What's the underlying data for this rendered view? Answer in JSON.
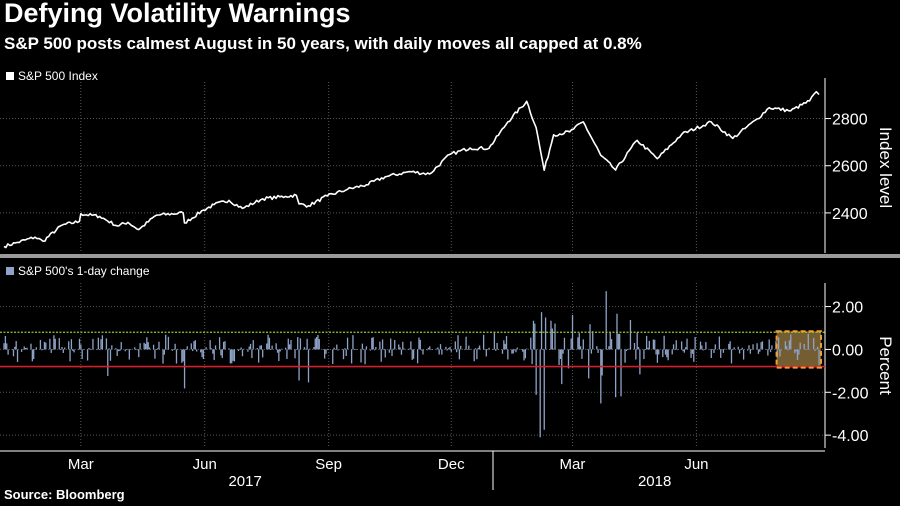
{
  "header": {
    "title": "Defying Volatility Warnings",
    "subtitle": "S&P 500 posts calmest August in 50 years, with daily moves all capped at 0.8%"
  },
  "footer": {
    "source": "Source: Bloomberg"
  },
  "colors": {
    "background": "#000000",
    "index_line": "#ffffff",
    "change_bars": "#8ea3c8",
    "upper_cap_line": "#9bc53d",
    "lower_cap_line": "#d0222a",
    "highlight_fill": "#8a6d3b",
    "highlight_border": "#f0a030",
    "grid": "#555555"
  },
  "chart_data": [
    {
      "type": "line",
      "legend": "S&P 500 Index",
      "legend_placement": "top-left",
      "ylabel": "Index level",
      "y_ticks": [
        2400,
        2600,
        2800
      ],
      "ylim": [
        2230,
        2955
      ],
      "x_start": "2017-01-03",
      "x_end": "2018-08-31",
      "grid": true,
      "series": [
        {
          "points": [
            [
              "2017-01-03",
              2258
            ],
            [
              "2017-01-13",
              2275
            ],
            [
              "2017-01-26",
              2297
            ],
            [
              "2017-02-01",
              2280
            ],
            [
              "2017-02-15",
              2348
            ],
            [
              "2017-02-28",
              2364
            ],
            [
              "2017-03-01",
              2396
            ],
            [
              "2017-03-15",
              2385
            ],
            [
              "2017-03-28",
              2345
            ],
            [
              "2017-04-05",
              2360
            ],
            [
              "2017-04-13",
              2329
            ],
            [
              "2017-04-26",
              2390
            ],
            [
              "2017-05-16",
              2400
            ],
            [
              "2017-05-17",
              2357
            ],
            [
              "2017-05-31",
              2412
            ],
            [
              "2017-06-08",
              2435
            ],
            [
              "2017-06-19",
              2453
            ],
            [
              "2017-06-29",
              2419
            ],
            [
              "2017-07-14",
              2460
            ],
            [
              "2017-07-31",
              2470
            ],
            [
              "2017-08-08",
              2475
            ],
            [
              "2017-08-10",
              2438
            ],
            [
              "2017-08-17",
              2430
            ],
            [
              "2017-08-31",
              2472
            ],
            [
              "2017-09-15",
              2500
            ],
            [
              "2017-09-29",
              2519
            ],
            [
              "2017-10-13",
              2553
            ],
            [
              "2017-10-31",
              2575
            ],
            [
              "2017-11-15",
              2565
            ],
            [
              "2017-11-30",
              2648
            ],
            [
              "2017-12-15",
              2675
            ],
            [
              "2017-12-29",
              2674
            ],
            [
              "2018-01-12",
              2786
            ],
            [
              "2018-01-26",
              2873
            ],
            [
              "2018-02-02",
              2762
            ],
            [
              "2018-02-08",
              2581
            ],
            [
              "2018-02-15",
              2731
            ],
            [
              "2018-02-27",
              2744
            ],
            [
              "2018-03-09",
              2786
            ],
            [
              "2018-03-22",
              2644
            ],
            [
              "2018-04-02",
              2582
            ],
            [
              "2018-04-18",
              2708
            ],
            [
              "2018-05-03",
              2630
            ],
            [
              "2018-05-21",
              2733
            ],
            [
              "2018-06-12",
              2786
            ],
            [
              "2018-06-28",
              2716
            ],
            [
              "2018-07-16",
              2798
            ],
            [
              "2018-07-25",
              2846
            ],
            [
              "2018-08-10",
              2833
            ],
            [
              "2018-08-24",
              2875
            ],
            [
              "2018-08-29",
              2914
            ],
            [
              "2018-08-31",
              2902
            ]
          ]
        }
      ]
    },
    {
      "type": "bar",
      "legend": "S&P 500's 1-day change",
      "legend_placement": "top-left",
      "ylabel": "Percent",
      "y_ticks": [
        -4.0,
        -2.0,
        0.0,
        2.0
      ],
      "y_tick_labels": [
        "-4.00",
        "-2.00",
        "0.00",
        "2.00"
      ],
      "ylim": [
        -4.6,
        3.1
      ],
      "reference_lines": [
        0.8,
        -0.8
      ],
      "highlight_range": [
        "2018-08-01",
        "2018-08-31"
      ],
      "x_start": "2017-01-03",
      "x_end": "2018-08-31",
      "grid": true,
      "notable_values": [
        [
          "2017-03-21",
          -1.24
        ],
        [
          "2017-05-17",
          -1.82
        ],
        [
          "2017-08-10",
          -1.45
        ],
        [
          "2017-08-17",
          -1.54
        ],
        [
          "2018-02-02",
          -2.12
        ],
        [
          "2018-02-05",
          -4.1
        ],
        [
          "2018-02-08",
          -3.75
        ],
        [
          "2018-03-26",
          2.72
        ],
        [
          "2018-03-22",
          -2.52
        ],
        [
          "2018-04-02",
          -2.23
        ],
        [
          "2018-04-06",
          -2.19
        ],
        [
          "2018-01-02",
          0.83
        ],
        [
          "2018-02-06",
          1.74
        ],
        [
          "2018-02-09",
          1.49
        ],
        [
          "2018-02-13",
          1.34
        ]
      ]
    }
  ],
  "x_axis": {
    "month_ticks": [
      {
        "date": "2017-03-01",
        "label": "Mar"
      },
      {
        "date": "2017-06-01",
        "label": "Jun"
      },
      {
        "date": "2017-09-01",
        "label": "Sep"
      },
      {
        "date": "2017-12-01",
        "label": "Dec"
      },
      {
        "date": "2018-03-01",
        "label": "Mar"
      },
      {
        "date": "2018-06-01",
        "label": "Jun"
      }
    ],
    "year_labels": [
      {
        "date": "2017-07-01",
        "label": "2017"
      },
      {
        "date": "2018-05-01",
        "label": "2018"
      }
    ],
    "year_separator": "2018-01-01"
  }
}
